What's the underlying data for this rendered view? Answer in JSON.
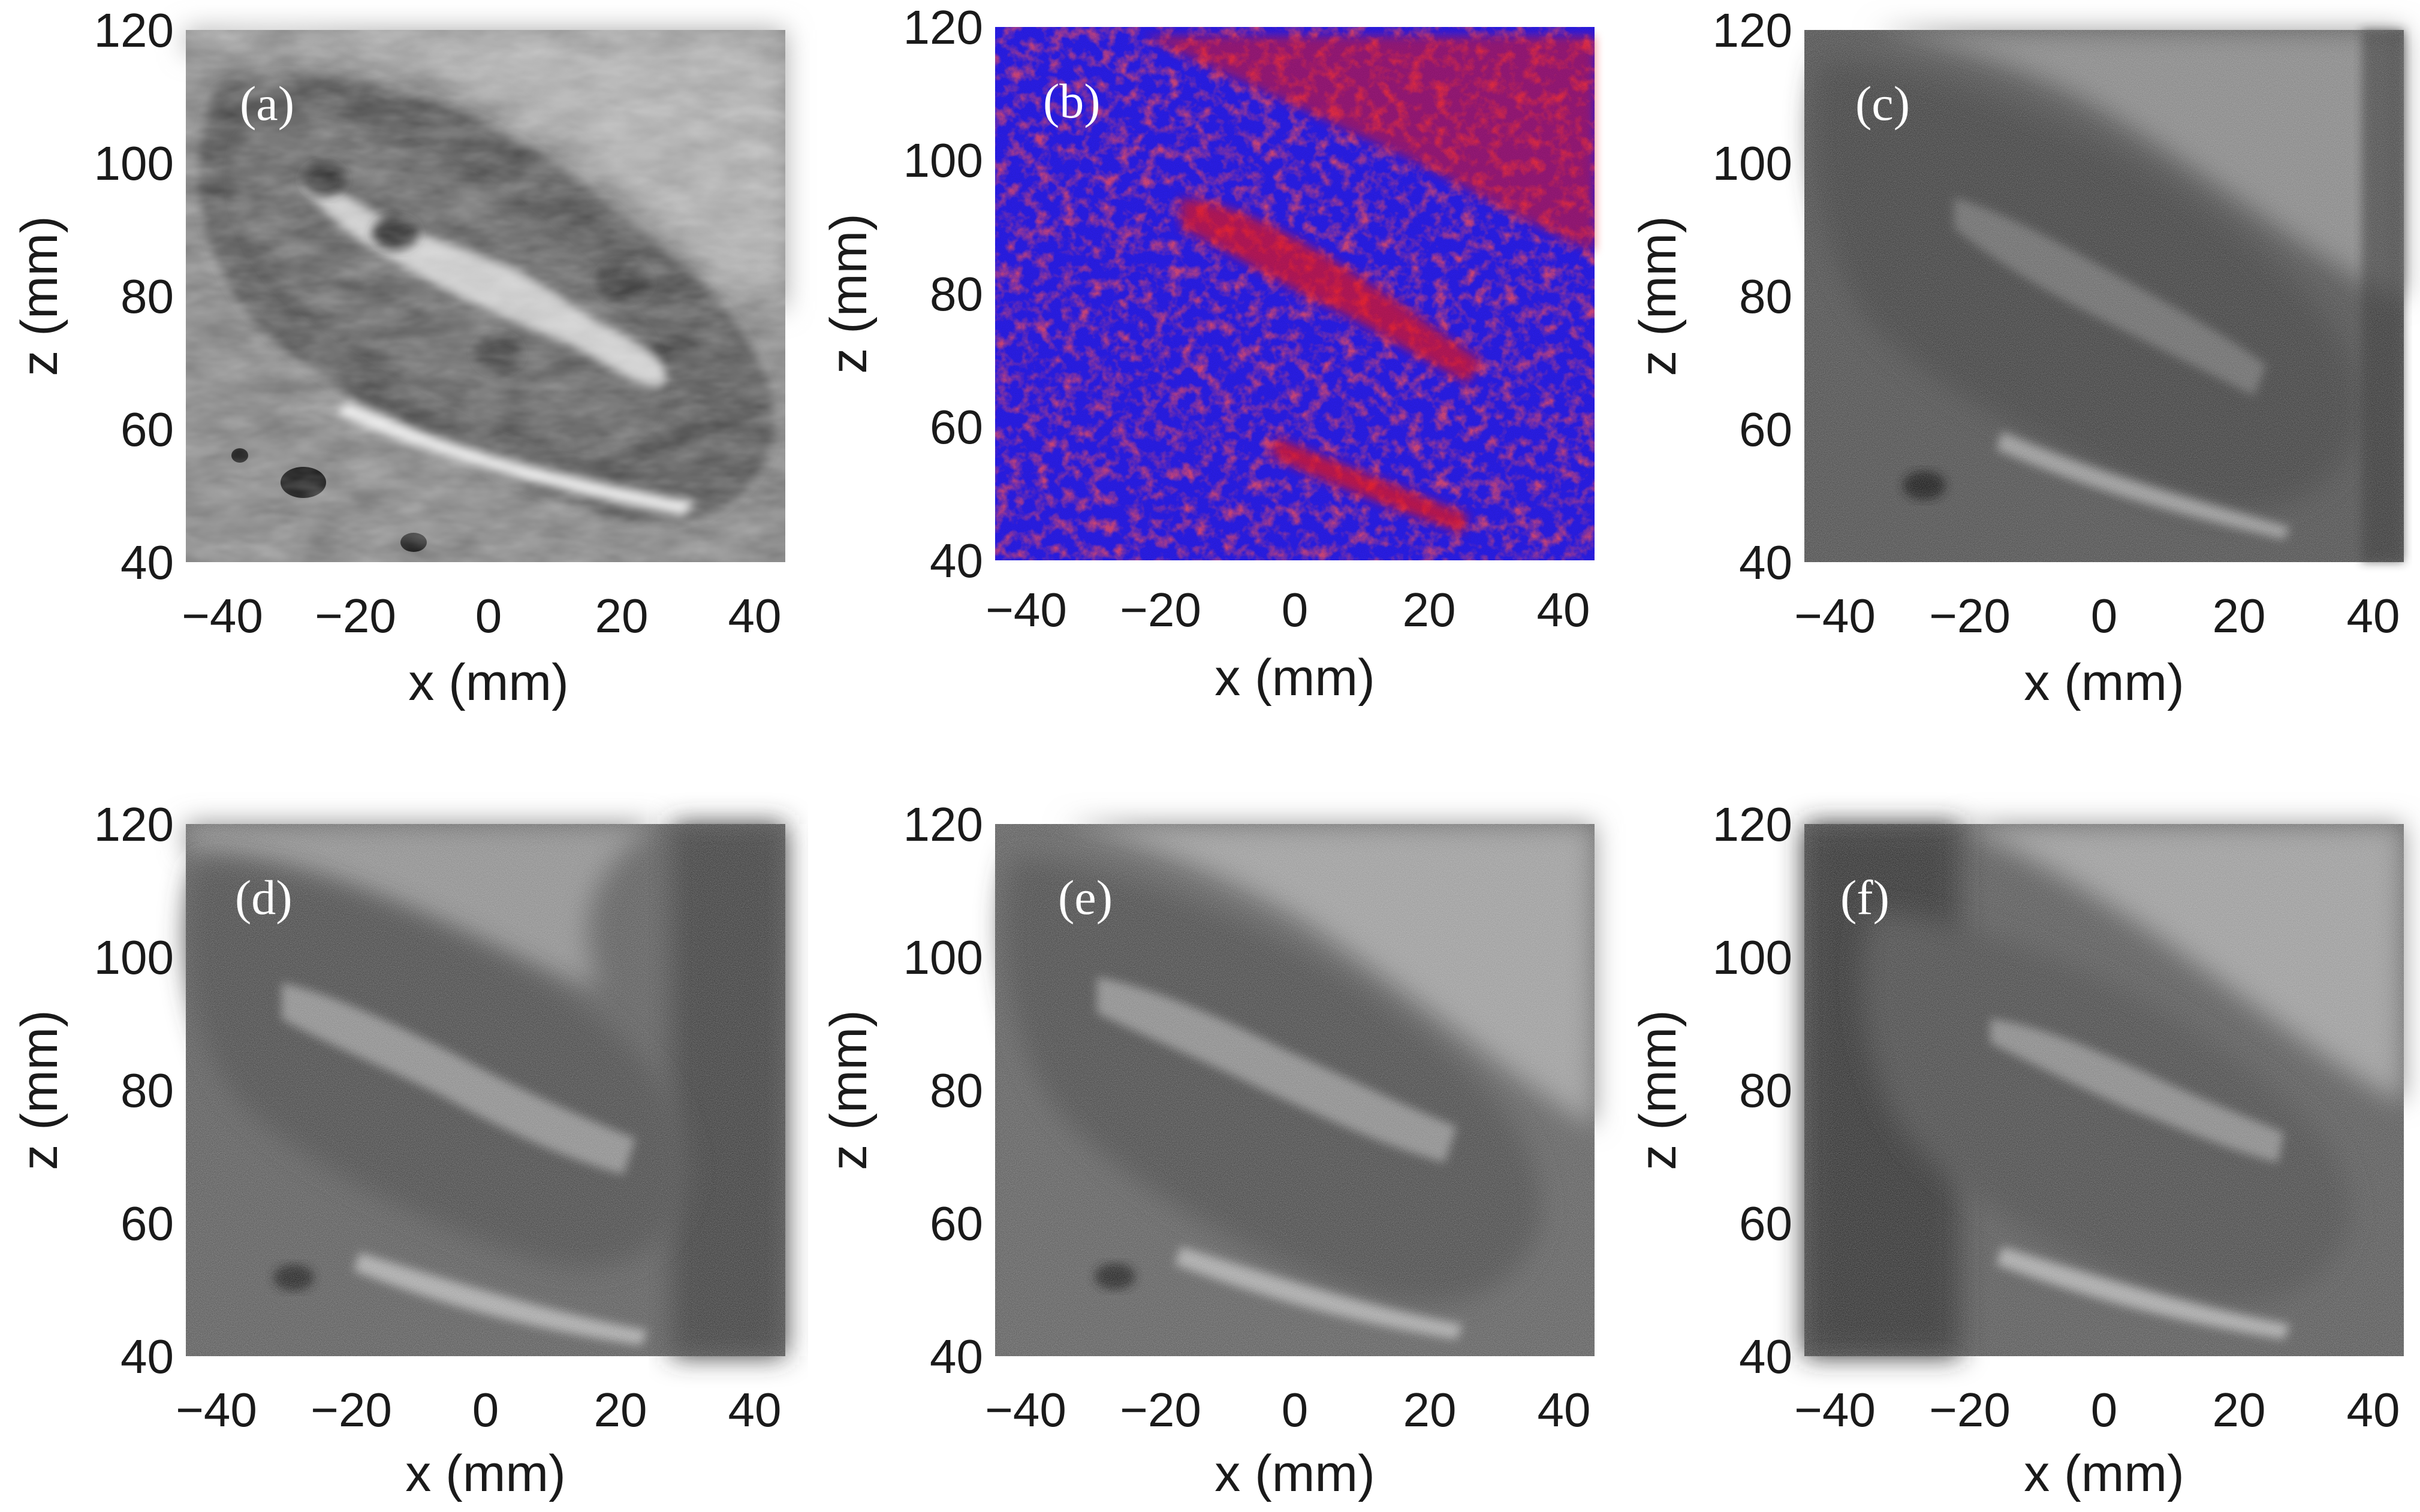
{
  "figure": {
    "xlabel": "x (mm)",
    "ylabel": "z (mm)",
    "xticks": [
      "−40",
      "−20",
      "0",
      "20",
      "40"
    ],
    "zticks": [
      "120",
      "100",
      "80",
      "60",
      "40"
    ],
    "x_range_mm": [
      -45,
      45
    ],
    "z_range_mm": [
      40,
      120
    ]
  },
  "panels": [
    {
      "label": "(a)",
      "style": "ct-grayscale"
    },
    {
      "label": "(b)",
      "style": "red-blue-scatterer-map",
      "colors": {
        "primary": "#2a1ee8",
        "secondary": "#f0141e"
      }
    },
    {
      "label": "(c)",
      "style": "ultrasound-bmode"
    },
    {
      "label": "(d)",
      "style": "ultrasound-bmode"
    },
    {
      "label": "(e)",
      "style": "ultrasound-bmode"
    },
    {
      "label": "(f)",
      "style": "ultrasound-bmode"
    }
  ]
}
